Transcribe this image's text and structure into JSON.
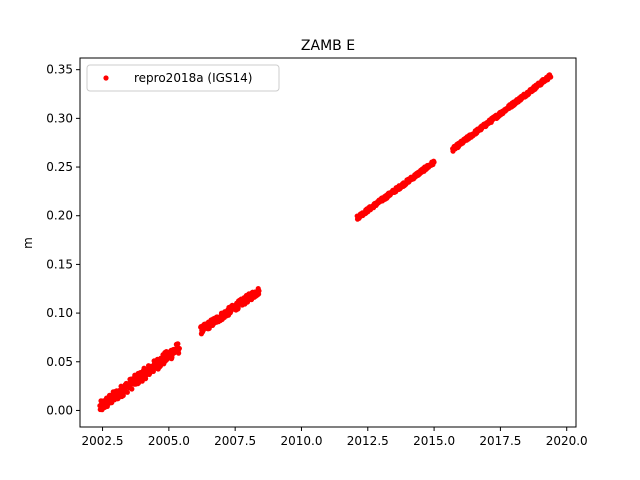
{
  "chart_data": {
    "type": "scatter",
    "title": "ZAMB E",
    "xlabel": "",
    "ylabel": "m",
    "xlim": [
      2001.65,
      2020.35
    ],
    "ylim": [
      -0.017,
      0.362
    ],
    "xticks": [
      "2002.5",
      "2005.0",
      "2007.5",
      "2010.0",
      "2012.5",
      "2015.0",
      "2017.5",
      "2020.0"
    ],
    "yticks": [
      "0.00",
      "0.05",
      "0.10",
      "0.15",
      "0.20",
      "0.25",
      "0.30",
      "0.35"
    ],
    "grid": false,
    "legend": {
      "placement": "top-left",
      "entries": [
        "repro2018a (IGS14)"
      ]
    },
    "series": [
      {
        "name": "repro2018a (IGS14)",
        "color": "#ff0000",
        "marker": "circle",
        "segments": [
          {
            "x_start": 2002.4,
            "x_end": 2005.4,
            "y_start": 0.003,
            "y_end": 0.065,
            "scatter": 0.006
          },
          {
            "x_start": 2006.2,
            "x_end": 2008.4,
            "y_start": 0.082,
            "y_end": 0.123,
            "scatter": 0.004
          },
          {
            "x_start": 2012.1,
            "x_end": 2015.0,
            "y_start": 0.198,
            "y_end": 0.255,
            "scatter": 0.002
          },
          {
            "x_start": 2015.7,
            "x_end": 2019.4,
            "y_start": 0.268,
            "y_end": 0.344,
            "scatter": 0.002
          }
        ]
      }
    ]
  }
}
